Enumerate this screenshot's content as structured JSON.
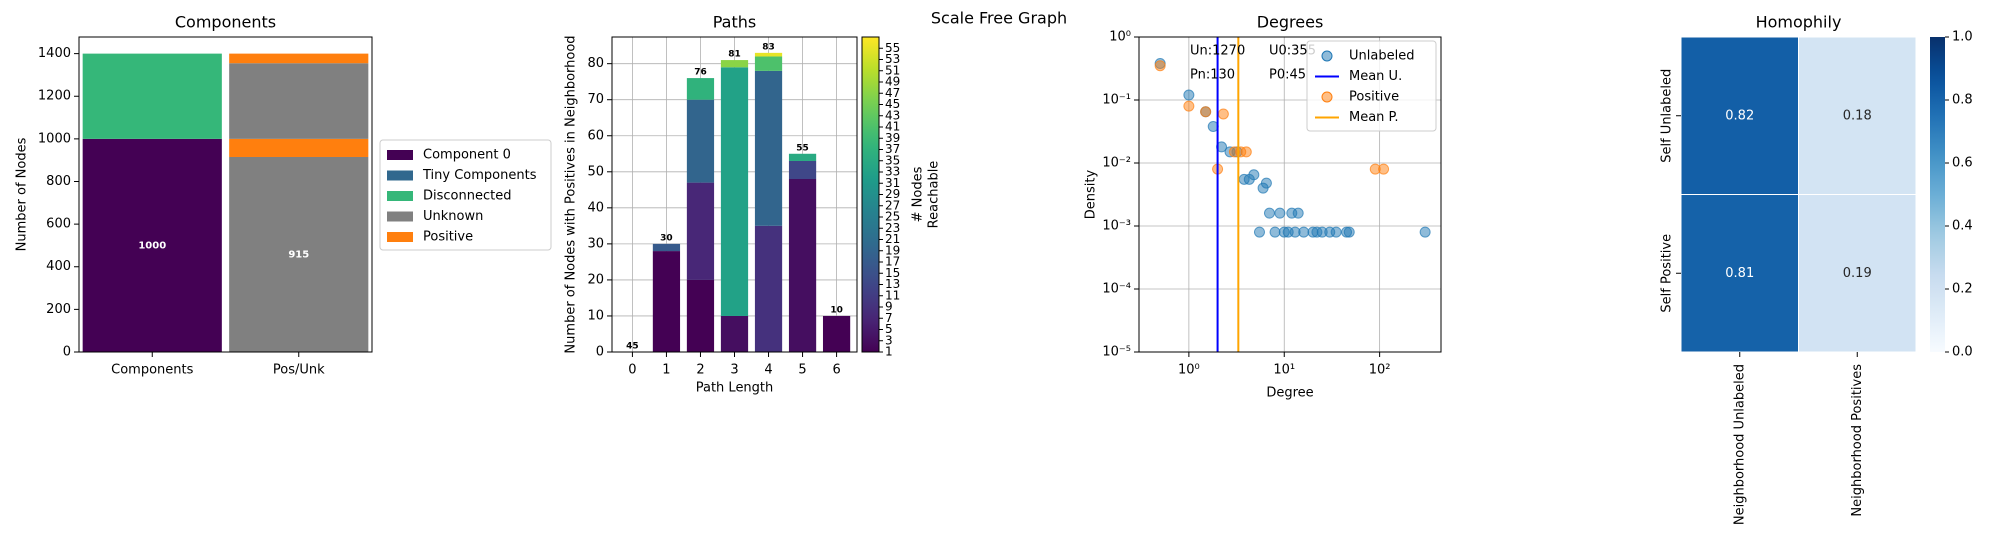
{
  "figure_title": "Scale Free Graph",
  "chart_data": [
    {
      "type": "bar",
      "title": "Components",
      "ylabel": "Number of Nodes",
      "categories": [
        "Components",
        "Pos/Unk"
      ],
      "series": [
        {
          "name": "Component 0",
          "color": "#440154"
        },
        {
          "name": "Tiny Components",
          "color": "#31688e"
        },
        {
          "name": "Disconnected",
          "color": "#35b779"
        },
        {
          "name": "Unknown",
          "color": "#808080"
        },
        {
          "name": "Positive",
          "color": "#ff7f0e"
        }
      ],
      "stacks": [
        [
          {
            "name": "Component 0",
            "value": 1000,
            "label": true
          },
          {
            "name": "Disconnected",
            "value": 400
          }
        ],
        [
          {
            "name": "Unknown",
            "value": 915,
            "label": true
          },
          {
            "name": "Positive",
            "value": 85
          },
          {
            "name": "Unknown",
            "value": 355
          },
          {
            "name": "Positive",
            "value": 45
          }
        ]
      ],
      "ylim": [
        0,
        1478
      ],
      "yticks": [
        0,
        200,
        400,
        600,
        800,
        1000,
        1200,
        1400
      ]
    },
    {
      "type": "gradientbar",
      "title": "Paths",
      "xlabel": "Path Length",
      "ylabel": "Number of Nodes with Positives in Neighborhood",
      "x": [
        0,
        1,
        2,
        3,
        4,
        5,
        6
      ],
      "stacks": [
        [],
        [
          {
            "reach": 1,
            "count": 28
          },
          {
            "reach": 17,
            "count": 2
          }
        ],
        [
          {
            "reach": 1,
            "count": 20
          },
          {
            "reach": 7,
            "count": 27
          },
          {
            "reach": 19,
            "count": 23
          },
          {
            "reach": 37,
            "count": 6
          }
        ],
        [
          {
            "reach": 3,
            "count": 10
          },
          {
            "reach": 33,
            "count": 69
          },
          {
            "reach": 47,
            "count": 2
          }
        ],
        [
          {
            "reach": 9,
            "count": 35
          },
          {
            "reach": 19,
            "count": 43
          },
          {
            "reach": 41,
            "count": 4
          },
          {
            "reach": 55,
            "count": 1
          }
        ],
        [
          {
            "reach": 3,
            "count": 48
          },
          {
            "reach": 13,
            "count": 5
          },
          {
            "reach": 35,
            "count": 2
          }
        ],
        [
          {
            "reach": 1,
            "count": 10
          }
        ]
      ],
      "bar_labels": [
        45,
        30,
        76,
        81,
        83,
        55,
        10
      ],
      "xlim": [
        -0.6,
        6.6
      ],
      "xticks": [
        0,
        1,
        2,
        3,
        4,
        5,
        6
      ],
      "ylim": [
        0,
        87.4
      ],
      "yticks": [
        0,
        10,
        20,
        30,
        40,
        50,
        60,
        70,
        80
      ],
      "grid": true,
      "colorbar": {
        "label": [
          "# Nodes",
          "Reachable"
        ],
        "lim": [
          1,
          57
        ],
        "ticks": [
          1,
          3,
          5,
          7,
          9,
          11,
          13,
          15,
          17,
          19,
          21,
          23,
          25,
          27,
          29,
          31,
          33,
          35,
          37,
          39,
          41,
          43,
          45,
          47,
          49,
          51,
          53,
          55
        ]
      }
    },
    {
      "type": "scatter",
      "title": "Degrees",
      "xlabel": "Degree",
      "ylabel": "Density",
      "log": true,
      "grid": true,
      "series": [
        {
          "name": "Unlabeled",
          "color": "#1f77b4",
          "x": [
            0.5,
            1,
            1.5,
            1.8,
            2.2,
            2.7,
            3.2,
            3.8,
            4.3,
            4.8,
            5.5,
            6,
            6.5,
            7,
            8,
            9,
            10,
            11,
            12,
            13,
            14,
            16,
            20,
            22,
            25,
            30,
            35,
            45,
            48,
            300
          ],
          "y": [
            0.38,
            0.12,
            0.065,
            0.038,
            0.018,
            0.015,
            0.015,
            0.0055,
            0.0055,
            0.0065,
            0.0008,
            0.004,
            0.0048,
            0.0016,
            0.0008,
            0.0016,
            0.0008,
            0.0008,
            0.0016,
            0.0008,
            0.0016,
            0.0008,
            0.0008,
            0.0008,
            0.0008,
            0.0008,
            0.0008,
            0.0008,
            0.0008,
            0.0008
          ]
        },
        {
          "name": "Positive",
          "color": "#ff7f0e",
          "x": [
            0.5,
            1,
            1.5,
            2,
            2.3,
            3,
            3.5,
            4,
            90,
            110
          ],
          "y": [
            0.35,
            0.08,
            0.065,
            0.008,
            0.06,
            0.015,
            0.015,
            0.015,
            0.008,
            0.008
          ]
        }
      ],
      "vlines": [
        {
          "name": "Mean U.",
          "color": "#0000ff",
          "x": 2.0
        },
        {
          "name": "Mean P.",
          "color": "#ffa500",
          "x": 3.3
        }
      ],
      "annotations": [
        "Un:1270",
        "U0:355",
        "Pn:130",
        "P0:45"
      ],
      "xlim": [
        0.3,
        440
      ],
      "xticks": [
        {
          "value": 1,
          "label": "10⁰"
        },
        {
          "value": 10,
          "label": "10¹"
        },
        {
          "value": 100,
          "label": "10²"
        }
      ],
      "ylim": [
        1e-05,
        1
      ],
      "yticks": [
        {
          "value": 1e-05,
          "label": "10⁻⁵"
        },
        {
          "value": 0.0001,
          "label": "10⁻⁴"
        },
        {
          "value": 0.001,
          "label": "10⁻³"
        },
        {
          "value": 0.01,
          "label": "10⁻²"
        },
        {
          "value": 0.1,
          "label": "10⁻¹"
        },
        {
          "value": 1,
          "label": "10⁰"
        }
      ]
    },
    {
      "type": "heatmap",
      "title": "Homophily",
      "rows": [
        "Self Unlabeled",
        "Self Positive"
      ],
      "columns": [
        "Neighborhood Unlabeled",
        "Neighborhood Positives"
      ],
      "values": [
        [
          0.82,
          0.18
        ],
        [
          0.81,
          0.19
        ]
      ],
      "colorbar": {
        "lim": [
          0,
          1
        ],
        "ticks": [
          {
            "value": 0,
            "label": "0.0"
          },
          0.2,
          0.4,
          0.6,
          0.8,
          {
            "value": 1,
            "label": "1.0"
          }
        ]
      }
    }
  ]
}
